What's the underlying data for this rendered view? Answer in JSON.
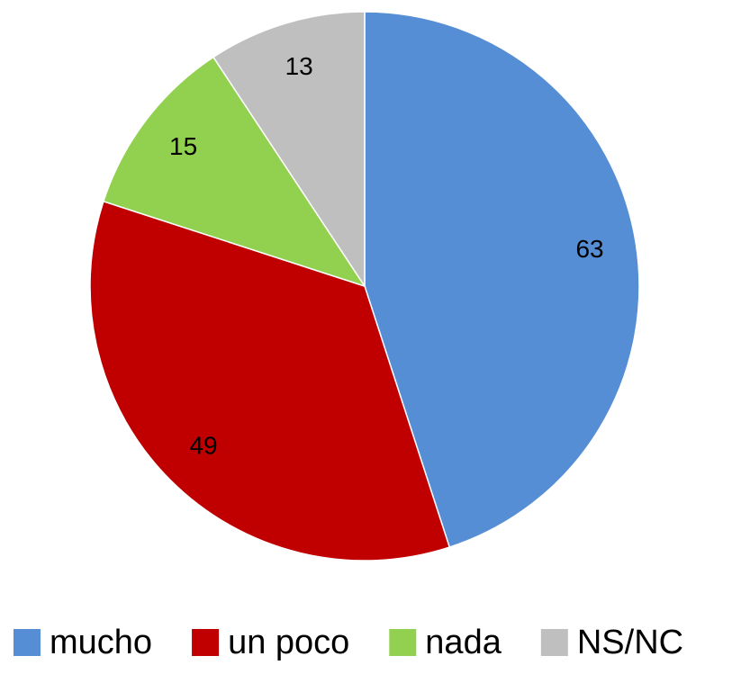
{
  "chart_data": {
    "type": "pie",
    "categories": [
      "mucho",
      "un poco",
      "nada",
      "NS/NC"
    ],
    "values": [
      63,
      49,
      15,
      13
    ],
    "colors": [
      "#558ed5",
      "#c00000",
      "#92d050",
      "#bfbfbf"
    ],
    "legend": "bottom"
  }
}
